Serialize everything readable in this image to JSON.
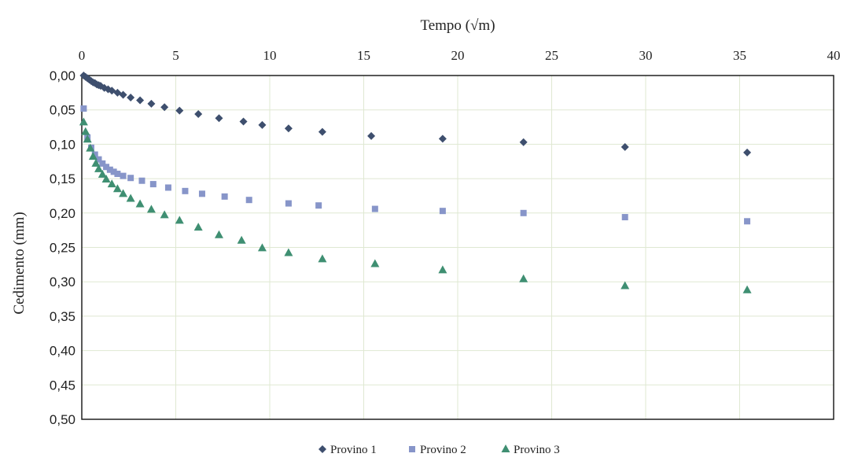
{
  "chart_data": {
    "type": "scatter",
    "title": "",
    "xlabel": "Tempo (√m)",
    "ylabel": "Cedimento (mm)",
    "xlim": [
      0,
      40
    ],
    "ylim": [
      0,
      0.5
    ],
    "y_reversed": true,
    "x_axis_position": "top",
    "x_ticks": [
      "0",
      "5",
      "10",
      "15",
      "20",
      "25",
      "30",
      "35",
      "40"
    ],
    "y_ticks": [
      "0,00",
      "0,05",
      "0,10",
      "0,15",
      "0,20",
      "0,25",
      "0,30",
      "0,35",
      "0,40",
      "0,45",
      "0,50"
    ],
    "grid": true,
    "legend_position": "bottom",
    "series": [
      {
        "name": "Provino 1",
        "color": "#3e4f6e",
        "marker": "diamond",
        "points": [
          [
            0.1,
            0.0
          ],
          [
            0.2,
            0.002
          ],
          [
            0.3,
            0.004
          ],
          [
            0.4,
            0.006
          ],
          [
            0.5,
            0.008
          ],
          [
            0.6,
            0.01
          ],
          [
            0.7,
            0.011
          ],
          [
            0.8,
            0.013
          ],
          [
            0.9,
            0.014
          ],
          [
            1.0,
            0.015
          ],
          [
            1.2,
            0.018
          ],
          [
            1.4,
            0.02
          ],
          [
            1.6,
            0.022
          ],
          [
            1.9,
            0.025
          ],
          [
            2.2,
            0.028
          ],
          [
            2.6,
            0.032
          ],
          [
            3.1,
            0.036
          ],
          [
            3.7,
            0.041
          ],
          [
            4.4,
            0.046
          ],
          [
            5.2,
            0.051
          ],
          [
            6.2,
            0.056
          ],
          [
            7.3,
            0.062
          ],
          [
            8.6,
            0.067
          ],
          [
            9.6,
            0.072
          ],
          [
            11.0,
            0.077
          ],
          [
            12.8,
            0.082
          ],
          [
            15.4,
            0.088
          ],
          [
            19.2,
            0.092
          ],
          [
            23.5,
            0.097
          ],
          [
            28.9,
            0.104
          ],
          [
            35.4,
            0.112
          ]
        ]
      },
      {
        "name": "Provino 2",
        "color": "#8795c9",
        "marker": "square",
        "points": [
          [
            0.1,
            0.048
          ],
          [
            0.3,
            0.09
          ],
          [
            0.5,
            0.105
          ],
          [
            0.7,
            0.115
          ],
          [
            0.9,
            0.122
          ],
          [
            1.1,
            0.128
          ],
          [
            1.3,
            0.133
          ],
          [
            1.5,
            0.137
          ],
          [
            1.7,
            0.14
          ],
          [
            1.9,
            0.143
          ],
          [
            2.2,
            0.146
          ],
          [
            2.6,
            0.149
          ],
          [
            3.2,
            0.153
          ],
          [
            3.8,
            0.158
          ],
          [
            4.6,
            0.163
          ],
          [
            5.5,
            0.168
          ],
          [
            6.4,
            0.172
          ],
          [
            7.6,
            0.176
          ],
          [
            8.9,
            0.181
          ],
          [
            11.0,
            0.186
          ],
          [
            12.6,
            0.189
          ],
          [
            15.6,
            0.194
          ],
          [
            19.2,
            0.197
          ],
          [
            23.5,
            0.2
          ],
          [
            28.9,
            0.206
          ],
          [
            35.4,
            0.212
          ]
        ]
      },
      {
        "name": "Provino 3",
        "color": "#3f8f72",
        "marker": "triangle",
        "points": [
          [
            0.1,
            0.068
          ],
          [
            0.2,
            0.082
          ],
          [
            0.3,
            0.093
          ],
          [
            0.45,
            0.106
          ],
          [
            0.6,
            0.118
          ],
          [
            0.75,
            0.128
          ],
          [
            0.9,
            0.136
          ],
          [
            1.1,
            0.144
          ],
          [
            1.3,
            0.151
          ],
          [
            1.6,
            0.158
          ],
          [
            1.9,
            0.165
          ],
          [
            2.2,
            0.172
          ],
          [
            2.6,
            0.179
          ],
          [
            3.1,
            0.187
          ],
          [
            3.7,
            0.195
          ],
          [
            4.4,
            0.203
          ],
          [
            5.2,
            0.211
          ],
          [
            6.2,
            0.221
          ],
          [
            7.3,
            0.232
          ],
          [
            8.5,
            0.24
          ],
          [
            9.6,
            0.251
          ],
          [
            11.0,
            0.258
          ],
          [
            12.8,
            0.267
          ],
          [
            15.6,
            0.274
          ],
          [
            19.2,
            0.283
          ],
          [
            23.5,
            0.296
          ],
          [
            28.9,
            0.306
          ],
          [
            35.4,
            0.312
          ]
        ]
      }
    ]
  }
}
